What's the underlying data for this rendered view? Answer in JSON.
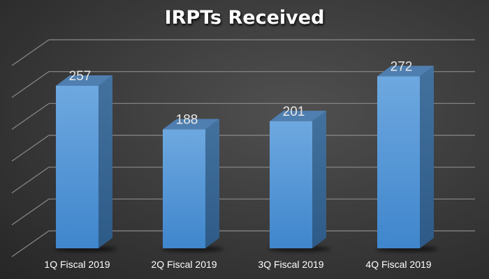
{
  "chart_data": {
    "type": "bar",
    "title": "IRPTs Received",
    "categories": [
      "1Q Fiscal 2019",
      "2Q Fiscal 2019",
      "3Q Fiscal 2019",
      "4Q Fiscal 2019"
    ],
    "values": [
      257,
      188,
      201,
      272
    ],
    "xlabel": "",
    "ylabel": "",
    "ylim": [
      0,
      300
    ],
    "ytick_step": 50,
    "grid": true,
    "legend": "none",
    "bar_color": "#5b9bd5"
  }
}
